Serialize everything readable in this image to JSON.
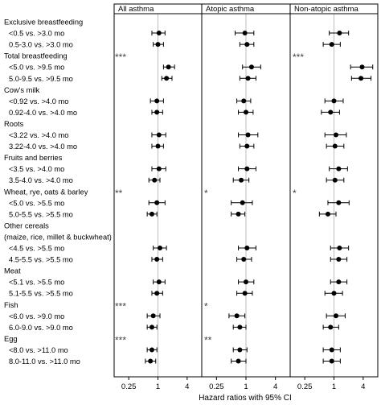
{
  "chart_data": {
    "type": "forest",
    "xlabel": "Hazard ratios with 95% CI",
    "x_scale": "log",
    "x_ticks": [
      0.25,
      1,
      4
    ],
    "x_tick_labels": [
      "0.25",
      "1",
      "4"
    ],
    "xlim": [
      0.125,
      8
    ],
    "panels": [
      {
        "name": "All asthma"
      },
      {
        "name": "Atopic asthma"
      },
      {
        "name": "Non-atopic asthma"
      }
    ],
    "rows": [
      {
        "kind": "header",
        "label": "Exclusive breastfeeding"
      },
      {
        "kind": "data",
        "label": "<0.5 vs. >3.0 mo",
        "est": [
          [
            1.05,
            0.75,
            1.4
          ],
          [
            0.95,
            0.6,
            1.45
          ],
          [
            1.3,
            0.8,
            2.0
          ]
        ]
      },
      {
        "kind": "data",
        "label": "0.5-3.0 vs. >3.0 mo",
        "est": [
          [
            1.0,
            0.8,
            1.3
          ],
          [
            1.05,
            0.75,
            1.45
          ],
          [
            0.9,
            0.6,
            1.35
          ]
        ]
      },
      {
        "kind": "header",
        "label": "Total breastfeeding",
        "marks": [
          "***",
          "",
          "***"
        ]
      },
      {
        "kind": "data",
        "label": "<5.0 vs. >9.5 mo",
        "est": [
          [
            1.65,
            1.3,
            2.2
          ],
          [
            1.3,
            0.85,
            2.0
          ],
          [
            3.8,
            2.2,
            6.3
          ]
        ]
      },
      {
        "kind": "data",
        "label": "5.0-9.5 vs. >9.5 mo",
        "est": [
          [
            1.5,
            1.2,
            1.95
          ],
          [
            1.1,
            0.75,
            1.6
          ],
          [
            3.6,
            2.3,
            5.8
          ]
        ]
      },
      {
        "kind": "header",
        "label": "Cow's milk"
      },
      {
        "kind": "data",
        "label": "<0.92 vs. >4.0 mo",
        "est": [
          [
            0.95,
            0.7,
            1.3
          ],
          [
            0.9,
            0.65,
            1.25
          ],
          [
            1.0,
            0.65,
            1.55
          ]
        ]
      },
      {
        "kind": "data",
        "label": "0.92-4.0 vs. >4.0 mo",
        "est": [
          [
            0.95,
            0.75,
            1.25
          ],
          [
            1.0,
            0.7,
            1.4
          ],
          [
            0.85,
            0.55,
            1.3
          ]
        ]
      },
      {
        "kind": "header",
        "label": "Roots"
      },
      {
        "kind": "data",
        "label": "<3.22 vs. >4.0 mo",
        "est": [
          [
            1.05,
            0.75,
            1.45
          ],
          [
            1.1,
            0.7,
            1.75
          ],
          [
            1.1,
            0.65,
            1.8
          ]
        ]
      },
      {
        "kind": "data",
        "label": "3.22-4.0 vs. >4.0 mo",
        "est": [
          [
            1.0,
            0.75,
            1.3
          ],
          [
            1.05,
            0.75,
            1.45
          ],
          [
            1.05,
            0.7,
            1.6
          ]
        ]
      },
      {
        "kind": "header",
        "label": "Fruits and berries"
      },
      {
        "kind": "data",
        "label": "<3.5 vs. >4.0 mo",
        "est": [
          [
            1.05,
            0.75,
            1.45
          ],
          [
            1.05,
            0.7,
            1.6
          ],
          [
            1.25,
            0.8,
            1.9
          ]
        ]
      },
      {
        "kind": "data",
        "label": "3.5-4.0 vs. >4.0 mo",
        "est": [
          [
            0.85,
            0.65,
            1.1
          ],
          [
            0.8,
            0.55,
            1.15
          ],
          [
            1.05,
            0.7,
            1.6
          ]
        ]
      },
      {
        "kind": "header",
        "label": "Wheat, rye, oats & barley",
        "marks": [
          "**",
          "*",
          "*"
        ]
      },
      {
        "kind": "data",
        "label": "<5.0  vs. >5.5 mo",
        "est": [
          [
            0.95,
            0.65,
            1.4
          ],
          [
            0.85,
            0.5,
            1.35
          ],
          [
            1.25,
            0.75,
            2.05
          ]
        ]
      },
      {
        "kind": "data",
        "label": "5.0-5.5 vs. >5.5 mo",
        "est": [
          [
            0.75,
            0.6,
            0.95
          ],
          [
            0.7,
            0.5,
            0.95
          ],
          [
            0.75,
            0.5,
            1.1
          ]
        ]
      },
      {
        "kind": "header",
        "label": "Other cereals"
      },
      {
        "kind": "header",
        "label": "(maize, rice, millet & buckwheat)"
      },
      {
        "kind": "data",
        "label": "<4.5 vs. >5.5 mo",
        "est": [
          [
            1.1,
            0.8,
            1.5
          ],
          [
            1.05,
            0.7,
            1.6
          ],
          [
            1.3,
            0.85,
            2.0
          ]
        ]
      },
      {
        "kind": "data",
        "label": "4.5-5.5 vs. >5.5 mo",
        "est": [
          [
            0.95,
            0.75,
            1.25
          ],
          [
            0.9,
            0.65,
            1.3
          ],
          [
            1.25,
            0.85,
            1.85
          ]
        ]
      },
      {
        "kind": "header",
        "label": "Meat"
      },
      {
        "kind": "data",
        "label": "<5.1 vs. >5.5 mo",
        "est": [
          [
            1.05,
            0.8,
            1.4
          ],
          [
            1.0,
            0.7,
            1.45
          ],
          [
            1.25,
            0.85,
            1.85
          ]
        ]
      },
      {
        "kind": "data",
        "label": "5.1-5.5 vs. >5.5 mo",
        "est": [
          [
            0.95,
            0.75,
            1.25
          ],
          [
            0.95,
            0.65,
            1.35
          ],
          [
            1.0,
            0.65,
            1.5
          ]
        ]
      },
      {
        "kind": "header",
        "label": "Fish",
        "marks": [
          "***",
          "*",
          ""
        ]
      },
      {
        "kind": "data",
        "label": "<6.0 vs. >9.0 mo",
        "est": [
          [
            0.8,
            0.6,
            1.1
          ],
          [
            0.65,
            0.45,
            0.95
          ],
          [
            1.1,
            0.7,
            1.7
          ]
        ]
      },
      {
        "kind": "data",
        "label": "6.0-9.0 vs. >9.0 mo",
        "est": [
          [
            0.75,
            0.6,
            0.95
          ],
          [
            0.75,
            0.55,
            1.0
          ],
          [
            0.85,
            0.6,
            1.25
          ]
        ]
      },
      {
        "kind": "header",
        "label": "Egg",
        "marks": [
          "***",
          "**",
          ""
        ]
      },
      {
        "kind": "data",
        "label": "<8.0 vs. >11.0 mo",
        "est": [
          [
            0.75,
            0.6,
            0.95
          ],
          [
            0.75,
            0.55,
            1.05
          ],
          [
            0.9,
            0.6,
            1.35
          ]
        ]
      },
      {
        "kind": "data",
        "label": "8.0-11.0 vs. >11.0 mo",
        "est": [
          [
            0.7,
            0.55,
            0.9
          ],
          [
            0.7,
            0.5,
            1.0
          ],
          [
            0.9,
            0.6,
            1.35
          ]
        ]
      }
    ]
  }
}
